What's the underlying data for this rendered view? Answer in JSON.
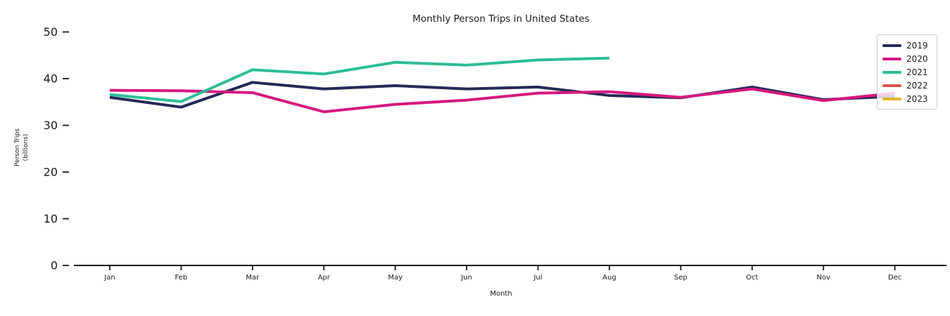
{
  "title": "Monthly Person Trips in United States",
  "axes": {
    "x_label": "Month",
    "y_label_line1": "Person Trips",
    "y_label_line2": "(billions)",
    "x_ticks": [
      "Jan",
      "Feb",
      "Mar",
      "Apr",
      "May",
      "Jun",
      "Jul",
      "Aug",
      "Sep",
      "Oct",
      "Nov",
      "Dec"
    ],
    "y_ticks": [
      0,
      10,
      20,
      30,
      40,
      50
    ]
  },
  "chart_data": {
    "type": "line",
    "title": "Monthly Person Trips in United States",
    "xlabel": "Month",
    "ylabel": "Person Trips (billions)",
    "categories": [
      "Jan",
      "Feb",
      "Mar",
      "Apr",
      "May",
      "Jun",
      "Jul",
      "Aug",
      "Sep",
      "Oct",
      "Nov",
      "Dec"
    ],
    "ylim": [
      0,
      52
    ],
    "grid": false,
    "legend_position": "upper right",
    "series": [
      {
        "name": "2019",
        "color": "#242a57",
        "values": [
          36.0,
          33.9,
          39.2,
          37.8,
          38.5,
          37.8,
          38.2,
          36.4,
          35.9,
          38.2,
          35.5,
          36.2
        ]
      },
      {
        "name": "2020",
        "color": "#d6197f",
        "values": [
          37.5,
          37.4,
          37.0,
          32.9,
          34.5,
          35.4,
          36.9,
          37.2,
          36.0,
          37.8,
          35.3,
          36.9
        ]
      },
      {
        "name": "2021",
        "color": "#2cbe96",
        "values": [
          36.6,
          35.1,
          41.9,
          41.0,
          43.5,
          42.9,
          44.0,
          44.4
        ]
      },
      {
        "name": "2022",
        "color": "#d9534f",
        "values": []
      },
      {
        "name": "2023",
        "color": "#e3b529",
        "values": []
      }
    ]
  }
}
